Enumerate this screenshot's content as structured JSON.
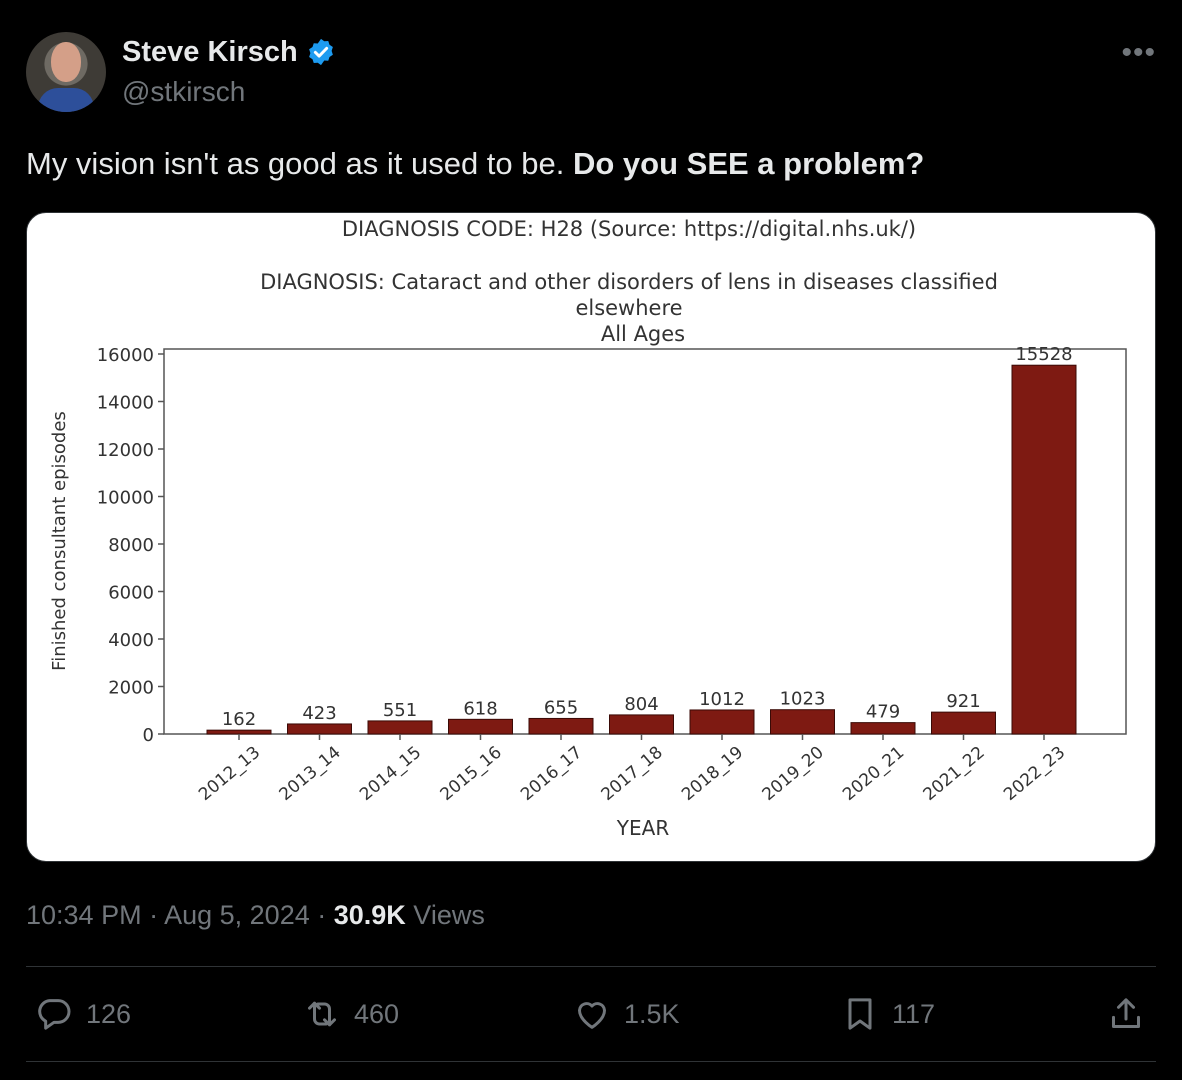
{
  "tweet": {
    "author": {
      "display_name": "Steve Kirsch",
      "handle": "@stkirsch",
      "verified": true
    },
    "text_regular": "My vision isn't as good as it used to be. ",
    "text_bold": "Do you SEE a problem?",
    "time": "10:34 PM",
    "sep1": " · ",
    "date": "Aug 5, 2024",
    "sep2": " · ",
    "views_count": "30.9K",
    "views_label": " Views",
    "actions": {
      "replies": "126",
      "reposts": "460",
      "likes": "1.5K",
      "bookmarks": "117"
    },
    "colors": {
      "background": "#000000",
      "text": "#e7e9ea",
      "muted": "#71767b",
      "verified": "#1d9bf0",
      "bar": "#7e1a12"
    },
    "icons": [
      "verified-badge-icon",
      "more-options-icon",
      "reply-icon",
      "repost-icon",
      "like-icon",
      "bookmark-icon",
      "share-icon"
    ]
  },
  "chart_data": {
    "type": "bar",
    "title": "DIAGNOSIS CODE: H28 (Source: https://digital.nhs.uk/)",
    "subtitle_line1": "DIAGNOSIS: Cataract and other disorders of lens in diseases classified",
    "subtitle_line2": "elsewhere",
    "subtitle_line3": "All Ages",
    "xlabel": "YEAR",
    "ylabel": "Finished consultant episodes",
    "categories": [
      "2012_13",
      "2013_14",
      "2014_15",
      "2015_16",
      "2016_17",
      "2017_18",
      "2018_19",
      "2019_20",
      "2020_21",
      "2021_22",
      "2022_23"
    ],
    "values": [
      162,
      423,
      551,
      618,
      655,
      804,
      1012,
      1023,
      479,
      921,
      15528
    ],
    "ylim": [
      0,
      16000
    ],
    "yticks": [
      0,
      2000,
      4000,
      6000,
      8000,
      10000,
      12000,
      14000,
      16000
    ],
    "grid": false,
    "bar_color": "#7e1a12"
  }
}
